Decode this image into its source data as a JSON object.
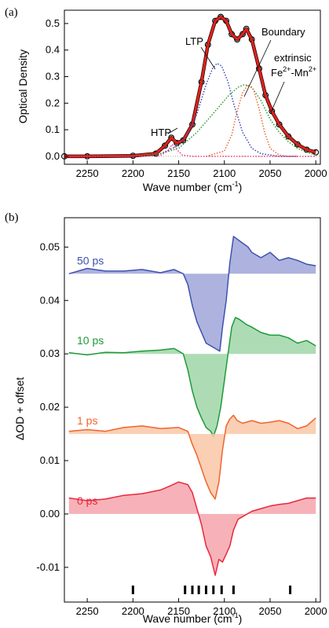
{
  "chart_data": [
    {
      "type": "line",
      "panel_label": "(a)",
      "xlabel": "Wave number",
      "xlabel_unit": "(cm",
      "xlabel_sup": "-1",
      "xlabel_close": ")",
      "ylabel": "Optical Density",
      "xlim": [
        2275,
        1995
      ],
      "ylim": [
        -0.03,
        0.55
      ],
      "x_ticks": [
        2250,
        2200,
        2150,
        2100,
        2050,
        2000
      ],
      "y_ticks": [
        0.0,
        0.1,
        0.2,
        0.3,
        0.4,
        0.5
      ],
      "y_tick_labels": [
        "0.0",
        "0.1",
        "0.2",
        "0.3",
        "0.4",
        "0.5"
      ],
      "annotations": {
        "htp": "HTP",
        "ltp": "LTP",
        "boundary": "Boundary",
        "extrinsic": "extrinsic",
        "fe": "Fe",
        "fe_sup": "2+",
        "mn": "-Mn",
        "mn_sup": "2+"
      },
      "series": [
        {
          "color": "#000000",
          "style": "circles",
          "x": [
            2275,
            2250,
            2200,
            2175,
            2165,
            2158,
            2152,
            2145,
            2135,
            2125,
            2118,
            2110,
            2104,
            2098,
            2092,
            2086,
            2080,
            2076,
            2070,
            2062,
            2055,
            2048,
            2040,
            2030,
            2020,
            2010,
            2000
          ],
          "y": [
            0.0,
            0.0,
            0.002,
            0.01,
            0.04,
            0.07,
            0.05,
            0.06,
            0.12,
            0.28,
            0.42,
            0.51,
            0.525,
            0.51,
            0.46,
            0.44,
            0.46,
            0.48,
            0.44,
            0.33,
            0.23,
            0.17,
            0.12,
            0.075,
            0.045,
            0.025,
            0.015
          ]
        },
        {
          "color": "#e0201b",
          "style": "fit",
          "x": [
            2275,
            2250,
            2200,
            2175,
            2165,
            2158,
            2152,
            2145,
            2135,
            2125,
            2118,
            2110,
            2104,
            2098,
            2092,
            2086,
            2080,
            2076,
            2070,
            2062,
            2055,
            2048,
            2040,
            2030,
            2020,
            2010,
            2000
          ],
          "y": [
            0.0,
            0.0,
            0.002,
            0.01,
            0.04,
            0.07,
            0.05,
            0.06,
            0.12,
            0.28,
            0.42,
            0.51,
            0.525,
            0.51,
            0.46,
            0.44,
            0.46,
            0.48,
            0.44,
            0.33,
            0.23,
            0.17,
            0.12,
            0.075,
            0.045,
            0.025,
            0.015
          ]
        },
        {
          "color": "#2b3bb8",
          "style": "dotted",
          "x": [
            2200,
            2170,
            2150,
            2140,
            2130,
            2120,
            2113,
            2108,
            2103,
            2096,
            2090,
            2080,
            2070,
            2060,
            2040,
            2020
          ],
          "y": [
            0.0,
            0.01,
            0.04,
            0.08,
            0.16,
            0.27,
            0.33,
            0.35,
            0.34,
            0.28,
            0.2,
            0.09,
            0.03,
            0.01,
            0.0,
            0.0
          ]
        },
        {
          "color": "#1a9a1a",
          "style": "dotted",
          "x": [
            2200,
            2170,
            2150,
            2130,
            2110,
            2095,
            2085,
            2078,
            2070,
            2060,
            2050,
            2040,
            2030,
            2020,
            2010,
            2000
          ],
          "y": [
            0.0,
            0.01,
            0.03,
            0.09,
            0.17,
            0.23,
            0.26,
            0.27,
            0.26,
            0.21,
            0.14,
            0.09,
            0.055,
            0.03,
            0.015,
            0.005
          ]
        },
        {
          "color": "#ef5a22",
          "style": "dotted",
          "x": [
            2120,
            2100,
            2092,
            2086,
            2080,
            2074,
            2068,
            2062,
            2056,
            2050,
            2040,
            2030,
            2020
          ],
          "y": [
            0.0,
            0.02,
            0.08,
            0.17,
            0.24,
            0.27,
            0.25,
            0.18,
            0.09,
            0.03,
            0.005,
            0.0,
            0.0
          ]
        },
        {
          "color": "#ff2b6e",
          "style": "dotted",
          "x": [
            2275,
            2200,
            2170,
            2162,
            2157,
            2152,
            2146,
            2135,
            2100,
            2000
          ],
          "y": [
            0.0,
            0.0,
            0.003,
            0.02,
            0.045,
            0.025,
            0.005,
            0.0,
            0.0,
            0.0
          ]
        }
      ]
    },
    {
      "type": "area",
      "panel_label": "(b)",
      "xlabel": "Wave number",
      "xlabel_unit": "(cm",
      "xlabel_sup": "-1",
      "xlabel_close": ")",
      "ylabel": "ΔOD + offset",
      "xlim": [
        2275,
        1995
      ],
      "ylim": [
        -0.0165,
        0.0555
      ],
      "x_ticks": [
        2250,
        2200,
        2150,
        2100,
        2050,
        2000
      ],
      "y_ticks": [
        -0.01,
        0.0,
        0.01,
        0.02,
        0.03,
        0.04,
        0.05
      ],
      "y_tick_labels": [
        "-0.01",
        "0.00",
        "0.01",
        "0.02",
        "0.03",
        "0.04",
        "0.05"
      ],
      "marker_ticks": [
        2200,
        2143,
        2135,
        2128,
        2120,
        2112,
        2103,
        2090,
        2028
      ],
      "series": [
        {
          "name": "50 ps",
          "offset": 0.045,
          "color": "#3f51b0",
          "fill": "#9fa6d8",
          "x": [
            2270,
            2250,
            2230,
            2210,
            2190,
            2170,
            2155,
            2145,
            2140,
            2135,
            2130,
            2125,
            2120,
            2115,
            2110,
            2105,
            2102,
            2098,
            2094,
            2090,
            2086,
            2082,
            2078,
            2074,
            2070,
            2060,
            2050,
            2040,
            2030,
            2020,
            2010,
            2000
          ],
          "y": [
            0.045,
            0.046,
            0.0455,
            0.0455,
            0.0458,
            0.0452,
            0.0458,
            0.045,
            0.043,
            0.039,
            0.036,
            0.034,
            0.032,
            0.0315,
            0.031,
            0.0305,
            0.035,
            0.04,
            0.047,
            0.052,
            0.0515,
            0.051,
            0.0505,
            0.05,
            0.049,
            0.048,
            0.049,
            0.0475,
            0.048,
            0.0475,
            0.0468,
            0.0465
          ]
        },
        {
          "name": "10 ps",
          "offset": 0.03,
          "color": "#1d9a3a",
          "fill": "#9fd6a7",
          "x": [
            2270,
            2250,
            2230,
            2210,
            2190,
            2170,
            2155,
            2145,
            2140,
            2135,
            2130,
            2125,
            2120,
            2115,
            2112,
            2108,
            2104,
            2100,
            2096,
            2092,
            2088,
            2084,
            2080,
            2076,
            2070,
            2060,
            2050,
            2040,
            2030,
            2020,
            2010,
            2000
          ],
          "y": [
            0.0302,
            0.0298,
            0.0303,
            0.0302,
            0.0305,
            0.0307,
            0.031,
            0.03,
            0.027,
            0.023,
            0.02,
            0.018,
            0.0162,
            0.0155,
            0.0145,
            0.0165,
            0.02,
            0.025,
            0.03,
            0.035,
            0.0368,
            0.0365,
            0.036,
            0.0355,
            0.035,
            0.034,
            0.0335,
            0.0335,
            0.033,
            0.032,
            0.0325,
            0.0315
          ]
        },
        {
          "name": "1 ps",
          "offset": 0.015,
          "color": "#f0642e",
          "fill": "#f9c7a6",
          "x": [
            2270,
            2250,
            2230,
            2210,
            2190,
            2170,
            2150,
            2140,
            2135,
            2130,
            2125,
            2120,
            2115,
            2110,
            2106,
            2102,
            2098,
            2094,
            2090,
            2086,
            2080,
            2070,
            2060,
            2050,
            2040,
            2030,
            2020,
            2010,
            2000
          ],
          "y": [
            0.0155,
            0.0158,
            0.0155,
            0.0162,
            0.0165,
            0.016,
            0.0162,
            0.0155,
            0.013,
            0.011,
            0.0085,
            0.006,
            0.004,
            0.0028,
            0.006,
            0.012,
            0.0165,
            0.0178,
            0.0185,
            0.0175,
            0.017,
            0.0175,
            0.017,
            0.0172,
            0.0175,
            0.017,
            0.016,
            0.0165,
            0.018
          ]
        },
        {
          "name": "0 ps",
          "offset": 0.0,
          "color": "#e8283c",
          "fill": "#f5a4ac",
          "x": [
            2270,
            2250,
            2230,
            2210,
            2190,
            2170,
            2160,
            2150,
            2140,
            2135,
            2130,
            2125,
            2120,
            2115,
            2110,
            2106,
            2102,
            2098,
            2094,
            2090,
            2085,
            2080,
            2070,
            2060,
            2050,
            2040,
            2030,
            2020,
            2010,
            2000
          ],
          "y": [
            0.003,
            0.0025,
            0.0028,
            0.0035,
            0.0038,
            0.0045,
            0.0052,
            0.006,
            0.0055,
            0.004,
            0.001,
            -0.002,
            -0.006,
            -0.008,
            -0.0115,
            -0.0085,
            -0.009,
            -0.0075,
            -0.006,
            -0.003,
            -0.001,
            -0.0005,
            0.0005,
            0.001,
            0.0015,
            0.0018,
            0.002,
            0.0025,
            0.003,
            0.003
          ]
        }
      ]
    }
  ]
}
